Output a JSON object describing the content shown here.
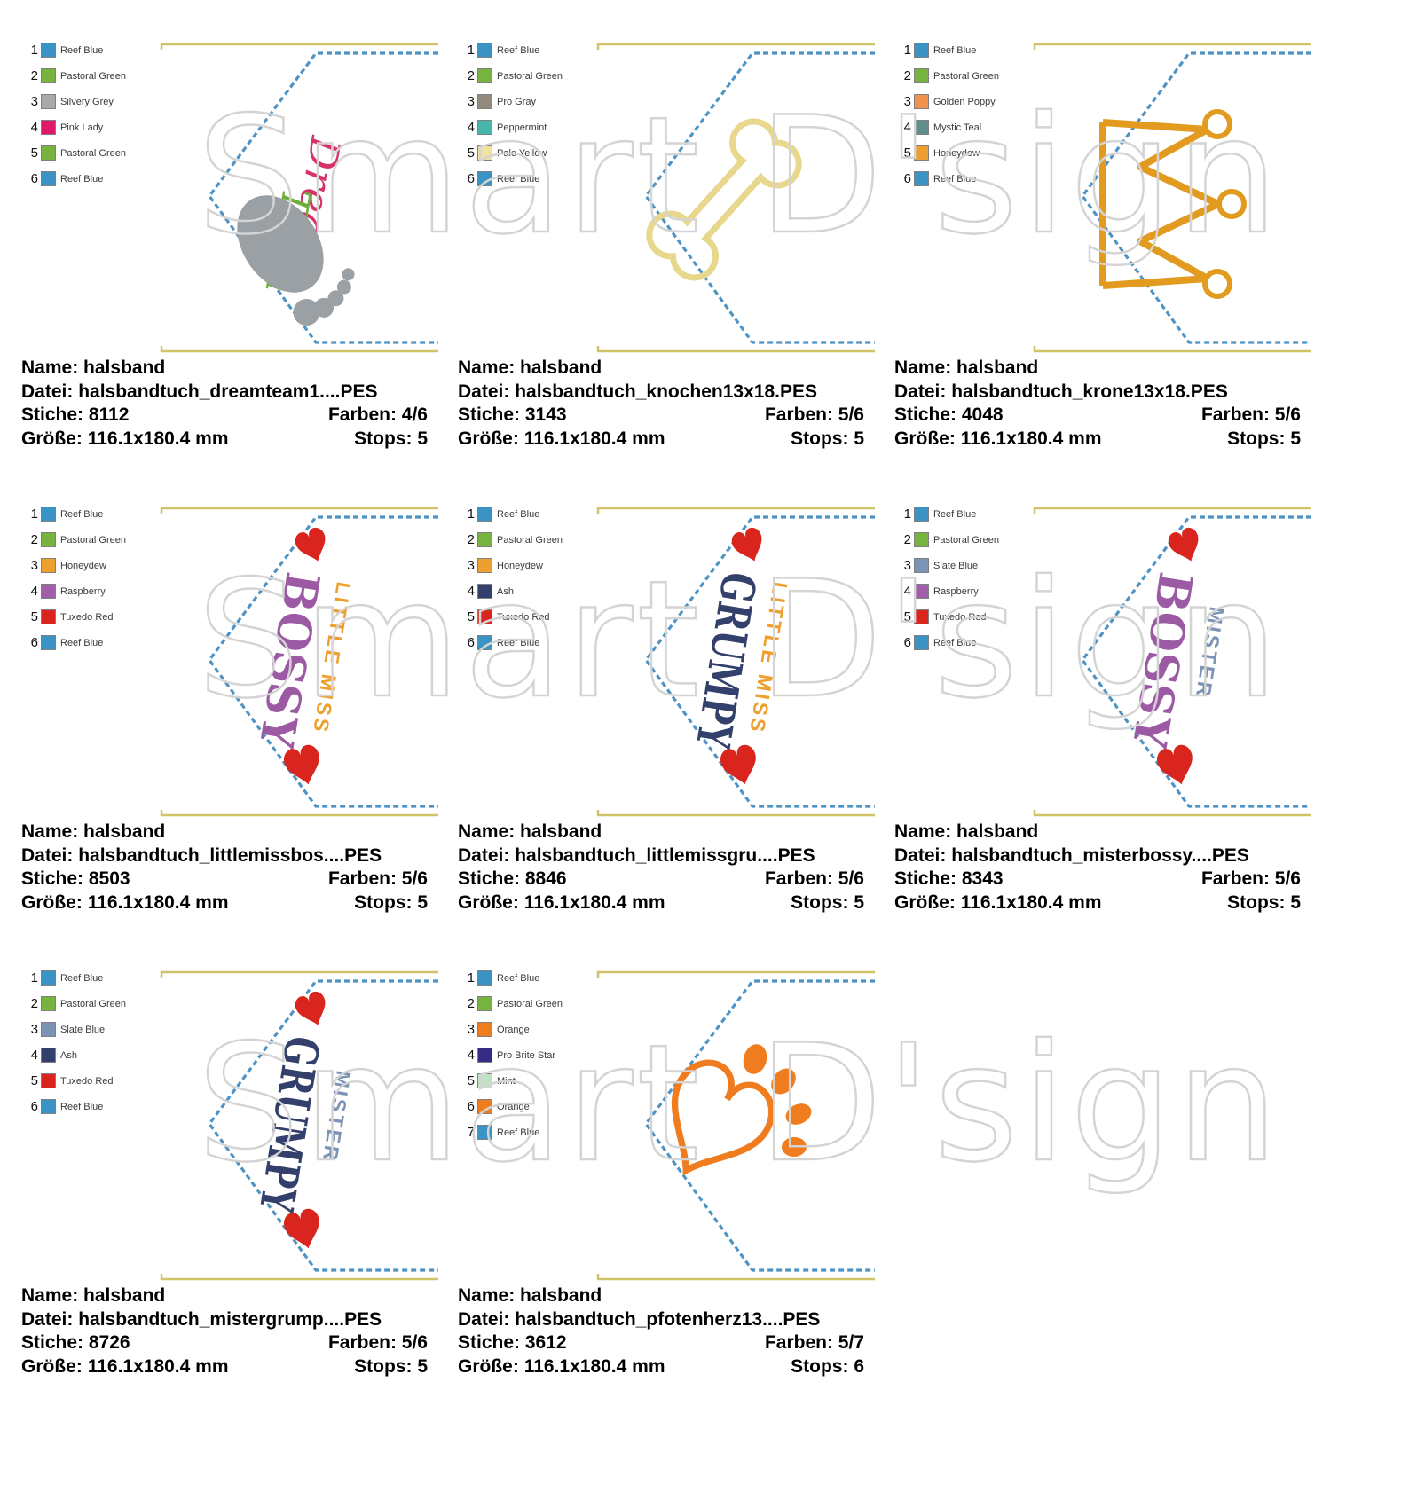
{
  "watermark": "Smart D'sign",
  "labels": {
    "name": "Name:",
    "datei": "Datei:",
    "stiche": "Stiche:",
    "farben": "Farben:",
    "groesse": "Größe:",
    "stops": "Stops:"
  },
  "outline_colors": {
    "stitch_blue": "#4e93c3",
    "edge_gold": "#cfc46a"
  },
  "designs": [
    {
      "colors": [
        {
          "n": "1",
          "name": "Reef Blue",
          "hex": "#3a93c5"
        },
        {
          "n": "2",
          "name": "Pastoral Green",
          "hex": "#77b43f"
        },
        {
          "n": "3",
          "name": "Silvery Grey",
          "hex": "#a9a9a9"
        },
        {
          "n": "4",
          "name": "Pink Lady",
          "hex": "#e0186c"
        },
        {
          "n": "5",
          "name": "Pastoral Green",
          "hex": "#77b43f"
        },
        {
          "n": "6",
          "name": "Reef Blue",
          "hex": "#3a93c5"
        }
      ],
      "info": {
        "name": "halsband",
        "datei": "halsbandtuch_dreamteam1....PES",
        "stiche": "8112",
        "farben": "4/6",
        "groesse": "116.1x180.4 mm",
        "stops": "5"
      },
      "motif": {
        "type": "dreamteam",
        "word1": "Dream",
        "word2": "Team",
        "word1_color": "#d6336c",
        "word2_color": "#6fae3d",
        "foot_color": "#9aa0a3"
      }
    },
    {
      "colors": [
        {
          "n": "1",
          "name": "Reef Blue",
          "hex": "#3a93c5"
        },
        {
          "n": "2",
          "name": "Pastoral Green",
          "hex": "#77b43f"
        },
        {
          "n": "3",
          "name": "Pro Gray",
          "hex": "#94897d"
        },
        {
          "n": "4",
          "name": "Peppermint",
          "hex": "#46b8ab"
        },
        {
          "n": "5",
          "name": "Pale Yellow",
          "hex": "#f0e3a2"
        },
        {
          "n": "6",
          "name": "Reef Blue",
          "hex": "#3a93c5"
        }
      ],
      "info": {
        "name": "halsband",
        "datei": "halsbandtuch_knochen13x18.PES",
        "stiche": "3143",
        "farben": "5/6",
        "groesse": "116.1x180.4 mm",
        "stops": "5"
      },
      "motif": {
        "type": "bone",
        "color": "#e8d88e"
      }
    },
    {
      "colors": [
        {
          "n": "1",
          "name": "Reef Blue",
          "hex": "#3a93c5"
        },
        {
          "n": "2",
          "name": "Pastoral Green",
          "hex": "#77b43f"
        },
        {
          "n": "3",
          "name": "Golden Poppy",
          "hex": "#f0924e"
        },
        {
          "n": "4",
          "name": "Mystic Teal",
          "hex": "#5f8d89"
        },
        {
          "n": "5",
          "name": "Honeydew",
          "hex": "#eda02f"
        },
        {
          "n": "6",
          "name": "Reef Blue",
          "hex": "#3a93c5"
        }
      ],
      "info": {
        "name": "halsband",
        "datei": "halsbandtuch_krone13x18.PES",
        "stiche": "4048",
        "farben": "5/6",
        "groesse": "116.1x180.4 mm",
        "stops": "5"
      },
      "motif": {
        "type": "crown",
        "color": "#e39b1f"
      }
    },
    {
      "colors": [
        {
          "n": "1",
          "name": "Reef Blue",
          "hex": "#3a93c5"
        },
        {
          "n": "2",
          "name": "Pastoral Green",
          "hex": "#77b43f"
        },
        {
          "n": "3",
          "name": "Honeydew",
          "hex": "#eda02f"
        },
        {
          "n": "4",
          "name": "Raspberry",
          "hex": "#a05fa8"
        },
        {
          "n": "5",
          "name": "Tuxedo Red",
          "hex": "#d9251d"
        },
        {
          "n": "6",
          "name": "Reef Blue",
          "hex": "#3a93c5"
        }
      ],
      "info": {
        "name": "halsband",
        "datei": "halsbandtuch_littlemissbos....PES",
        "stiche": "8503",
        "farben": "5/6",
        "groesse": "116.1x180.4 mm",
        "stops": "5"
      },
      "motif": {
        "type": "words",
        "big": "BOSSY",
        "small": "LITTLE MISS",
        "big_color": "#9c5aa5",
        "small_color": "#eda02f",
        "heart_color": "#d9251d"
      }
    },
    {
      "colors": [
        {
          "n": "1",
          "name": "Reef Blue",
          "hex": "#3a93c5"
        },
        {
          "n": "2",
          "name": "Pastoral Green",
          "hex": "#77b43f"
        },
        {
          "n": "3",
          "name": "Honeydew",
          "hex": "#eda02f"
        },
        {
          "n": "4",
          "name": "Ash",
          "hex": "#32406b"
        },
        {
          "n": "5",
          "name": "Tuxedo Red",
          "hex": "#d9251d"
        },
        {
          "n": "6",
          "name": "Reef Blue",
          "hex": "#3a93c5"
        }
      ],
      "info": {
        "name": "halsband",
        "datei": "halsbandtuch_littlemissgru....PES",
        "stiche": "8846",
        "farben": "5/6",
        "groesse": "116.1x180.4 mm",
        "stops": "5"
      },
      "motif": {
        "type": "words",
        "big": "GRUMPY",
        "small": "LITTLE MISS",
        "big_color": "#32406b",
        "small_color": "#eda02f",
        "heart_color": "#d9251d"
      }
    },
    {
      "colors": [
        {
          "n": "1",
          "name": "Reef Blue",
          "hex": "#3a93c5"
        },
        {
          "n": "2",
          "name": "Pastoral Green",
          "hex": "#77b43f"
        },
        {
          "n": "3",
          "name": "Slate Blue",
          "hex": "#7b94b5"
        },
        {
          "n": "4",
          "name": "Raspberry",
          "hex": "#a05fa8"
        },
        {
          "n": "5",
          "name": "Tuxedo Red",
          "hex": "#d9251d"
        },
        {
          "n": "6",
          "name": "Reef Blue",
          "hex": "#3a93c5"
        }
      ],
      "info": {
        "name": "halsband",
        "datei": "halsbandtuch_misterbossy....PES",
        "stiche": "8343",
        "farben": "5/6",
        "groesse": "116.1x180.4 mm",
        "stops": "5"
      },
      "motif": {
        "type": "words",
        "big": "BOSSY",
        "small": "MISTER",
        "big_color": "#9c5aa5",
        "small_color": "#7b94b5",
        "heart_color": "#d9251d"
      }
    },
    {
      "colors": [
        {
          "n": "1",
          "name": "Reef Blue",
          "hex": "#3a93c5"
        },
        {
          "n": "2",
          "name": "Pastoral Green",
          "hex": "#77b43f"
        },
        {
          "n": "3",
          "name": "Slate Blue",
          "hex": "#7b94b5"
        },
        {
          "n": "4",
          "name": "Ash",
          "hex": "#32406b"
        },
        {
          "n": "5",
          "name": "Tuxedo Red",
          "hex": "#d9251d"
        },
        {
          "n": "6",
          "name": "Reef Blue",
          "hex": "#3a93c5"
        }
      ],
      "info": {
        "name": "halsband",
        "datei": "halsbandtuch_mistergrump....PES",
        "stiche": "8726",
        "farben": "5/6",
        "groesse": "116.1x180.4 mm",
        "stops": "5"
      },
      "motif": {
        "type": "words",
        "big": "GRUMPY",
        "small": "MISTER",
        "big_color": "#32406b",
        "small_color": "#7b94b5",
        "heart_color": "#d9251d"
      }
    },
    {
      "colors": [
        {
          "n": "1",
          "name": "Reef Blue",
          "hex": "#3a93c5"
        },
        {
          "n": "2",
          "name": "Pastoral Green",
          "hex": "#77b43f"
        },
        {
          "n": "3",
          "name": "Orange",
          "hex": "#ef7d20"
        },
        {
          "n": "4",
          "name": "Pro Brite Star",
          "hex": "#342c85"
        },
        {
          "n": "5",
          "name": "Mint",
          "hex": "#bfe3c0"
        },
        {
          "n": "6",
          "name": "Orange",
          "hex": "#ef7d20"
        },
        {
          "n": "7",
          "name": "Reef Blue",
          "hex": "#3a93c5"
        }
      ],
      "info": {
        "name": "halsband",
        "datei": "halsbandtuch_pfotenherz13....PES",
        "stiche": "3612",
        "farben": "5/7",
        "groesse": "116.1x180.4 mm",
        "stops": "6"
      },
      "motif": {
        "type": "pawheart",
        "color": "#ef7d20"
      }
    }
  ]
}
